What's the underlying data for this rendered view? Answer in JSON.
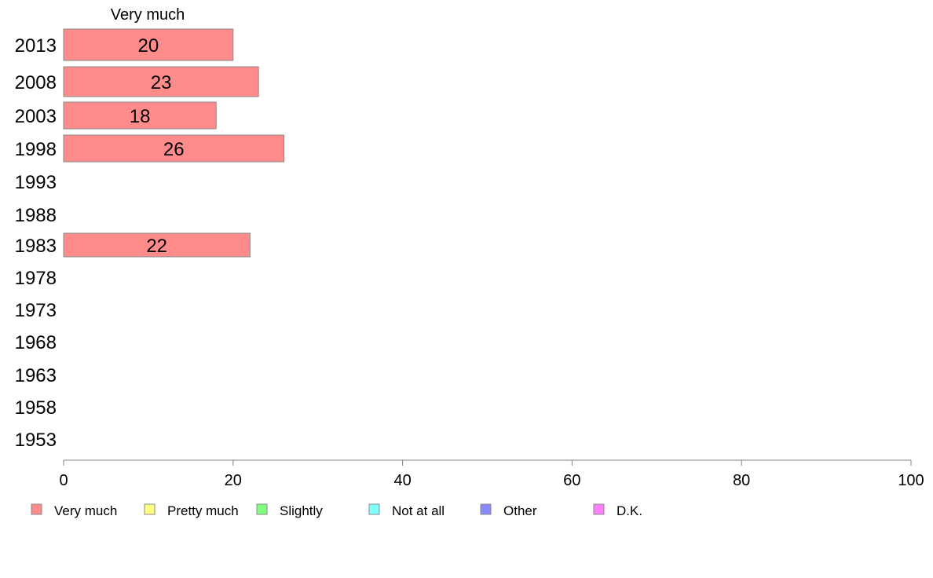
{
  "chart_data": {
    "type": "bar",
    "orientation": "horizontal",
    "stacked": true,
    "title": "",
    "xlabel": "",
    "ylabel": "",
    "xlim": [
      0,
      100
    ],
    "x_ticks": [
      0,
      20,
      40,
      60,
      80,
      100
    ],
    "column_header": "Very much",
    "categories": [
      "2013",
      "2008",
      "2003",
      "1998",
      "1993",
      "1988",
      "1983",
      "1978",
      "1973",
      "1968",
      "1963",
      "1958",
      "1953"
    ],
    "series": [
      {
        "name": "Very much",
        "color": "#ff8b8b",
        "values": [
          20,
          23,
          18,
          26,
          null,
          null,
          22,
          null,
          null,
          null,
          null,
          null,
          null
        ]
      },
      {
        "name": "Pretty much",
        "color": "#ffff80",
        "values": [
          null,
          null,
          null,
          null,
          null,
          null,
          null,
          null,
          null,
          null,
          null,
          null,
          null
        ]
      },
      {
        "name": "Slightly",
        "color": "#80ff80",
        "values": [
          null,
          null,
          null,
          null,
          null,
          null,
          null,
          null,
          null,
          null,
          null,
          null,
          null
        ]
      },
      {
        "name": "Not at all",
        "color": "#80ffff",
        "values": [
          null,
          null,
          null,
          null,
          null,
          null,
          null,
          null,
          null,
          null,
          null,
          null,
          null
        ]
      },
      {
        "name": "Other",
        "color": "#8888ff",
        "values": [
          null,
          null,
          null,
          null,
          null,
          null,
          null,
          null,
          null,
          null,
          null,
          null,
          null
        ]
      },
      {
        "name": "D.K.",
        "color": "#ff80ff",
        "values": [
          null,
          null,
          null,
          null,
          null,
          null,
          null,
          null,
          null,
          null,
          null,
          null,
          null
        ]
      }
    ],
    "grid": false,
    "legend_position": "bottom"
  }
}
